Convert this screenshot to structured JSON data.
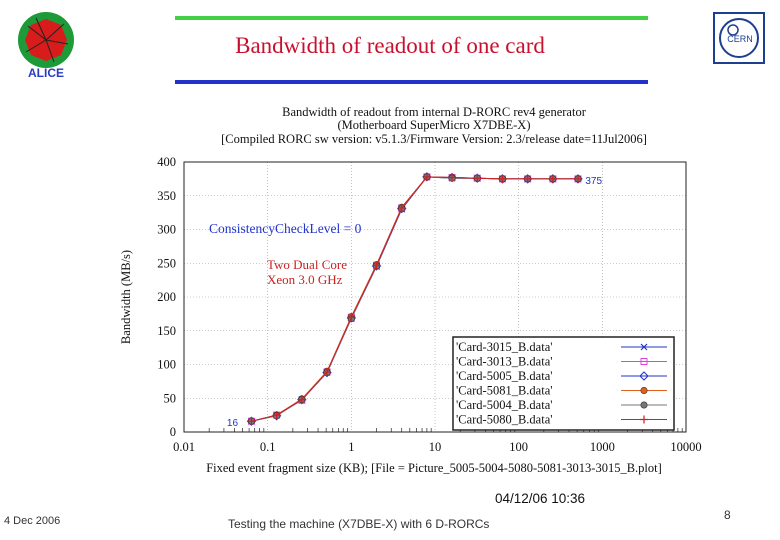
{
  "slide": {
    "title": "Bandwidth of readout of one card",
    "footer_date": "4 Dec 2006",
    "footer_center": "Testing the machine (X7DBE-X) with 6 D-RORCs",
    "page_number": "8",
    "logo_left_text": "ALICE",
    "logo_right_text": "CERN"
  },
  "chart_data": {
    "type": "line",
    "title_lines": [
      "Bandwidth of readout from internal D-RORC rev4 generator",
      "(Motherboard SuperMicro X7DBE-X)",
      "[Compiled RORC sw version: v5.1.3/Firmware Version: 2.3/release date=11Jul2006]"
    ],
    "xlabel": "Fixed event fragment size (KB); [File = Picture_5005-5004-5080-5081-3013-3015_B.plot]",
    "ylabel": "Bandwidth (MB/s)",
    "x_scale": "log",
    "xlim": [
      0.01,
      10000
    ],
    "ylim": [
      0,
      400
    ],
    "x_ticks": [
      "0.01",
      "0.1",
      "1",
      "10",
      "100",
      "1000",
      "10000"
    ],
    "y_ticks": [
      "0",
      "50",
      "100",
      "150",
      "200",
      "250",
      "300",
      "350",
      "400"
    ],
    "grid": true,
    "legend_position": "bottom-right",
    "annotations": [
      {
        "text": "ConsistencyCheckLevel = 0",
        "color": "#2233cc"
      },
      {
        "text": "Two Dual Core",
        "color": "#cc2222"
      },
      {
        "text": "Xeon 3.0 GHz",
        "color": "#cc2222"
      },
      {
        "text": "375",
        "color": "#2233cc"
      },
      {
        "text": "16",
        "color": "#2233cc"
      }
    ],
    "timestamp": "04/12/06 10:36",
    "x": [
      0.064,
      0.128,
      0.256,
      0.512,
      1,
      2,
      4,
      8,
      16,
      32,
      64,
      128,
      256,
      512
    ],
    "series": [
      {
        "name": "'Card-3015_B.data'",
        "color": "#2233cc",
        "marker": "x",
        "values": [
          16,
          25,
          48,
          88,
          168,
          245,
          330,
          378,
          376,
          376,
          375,
          375,
          375,
          375
        ]
      },
      {
        "name": "'Card-3013_B.data'",
        "color": "#e040e0",
        "marker": "square",
        "values": [
          16,
          25,
          47,
          89,
          170,
          247,
          332,
          378,
          377,
          376,
          375,
          375,
          375,
          375
        ]
      },
      {
        "name": "'Card-5005_B.data'",
        "color": "#2233cc",
        "marker": "diamond",
        "values": [
          16,
          24,
          48,
          88,
          169,
          246,
          331,
          378,
          377,
          376,
          375,
          375,
          375,
          375
        ]
      },
      {
        "name": "'Card-5081_B.data'",
        "color": "#e06020",
        "marker": "circle",
        "values": [
          16,
          25,
          49,
          90,
          171,
          248,
          333,
          378,
          377,
          376,
          375,
          375,
          375,
          375
        ]
      },
      {
        "name": "'Card-5004_B.data'",
        "color": "#777777",
        "marker": "circle",
        "values": [
          16,
          24,
          48,
          88,
          168,
          246,
          331,
          378,
          376,
          376,
          375,
          375,
          375,
          375
        ]
      },
      {
        "name": "'Card-5080_B.data'",
        "color": "#cc2222",
        "marker": "plus",
        "values": [
          16,
          25,
          48,
          89,
          170,
          247,
          332,
          378,
          377,
          376,
          375,
          375,
          375,
          375
        ]
      }
    ]
  }
}
